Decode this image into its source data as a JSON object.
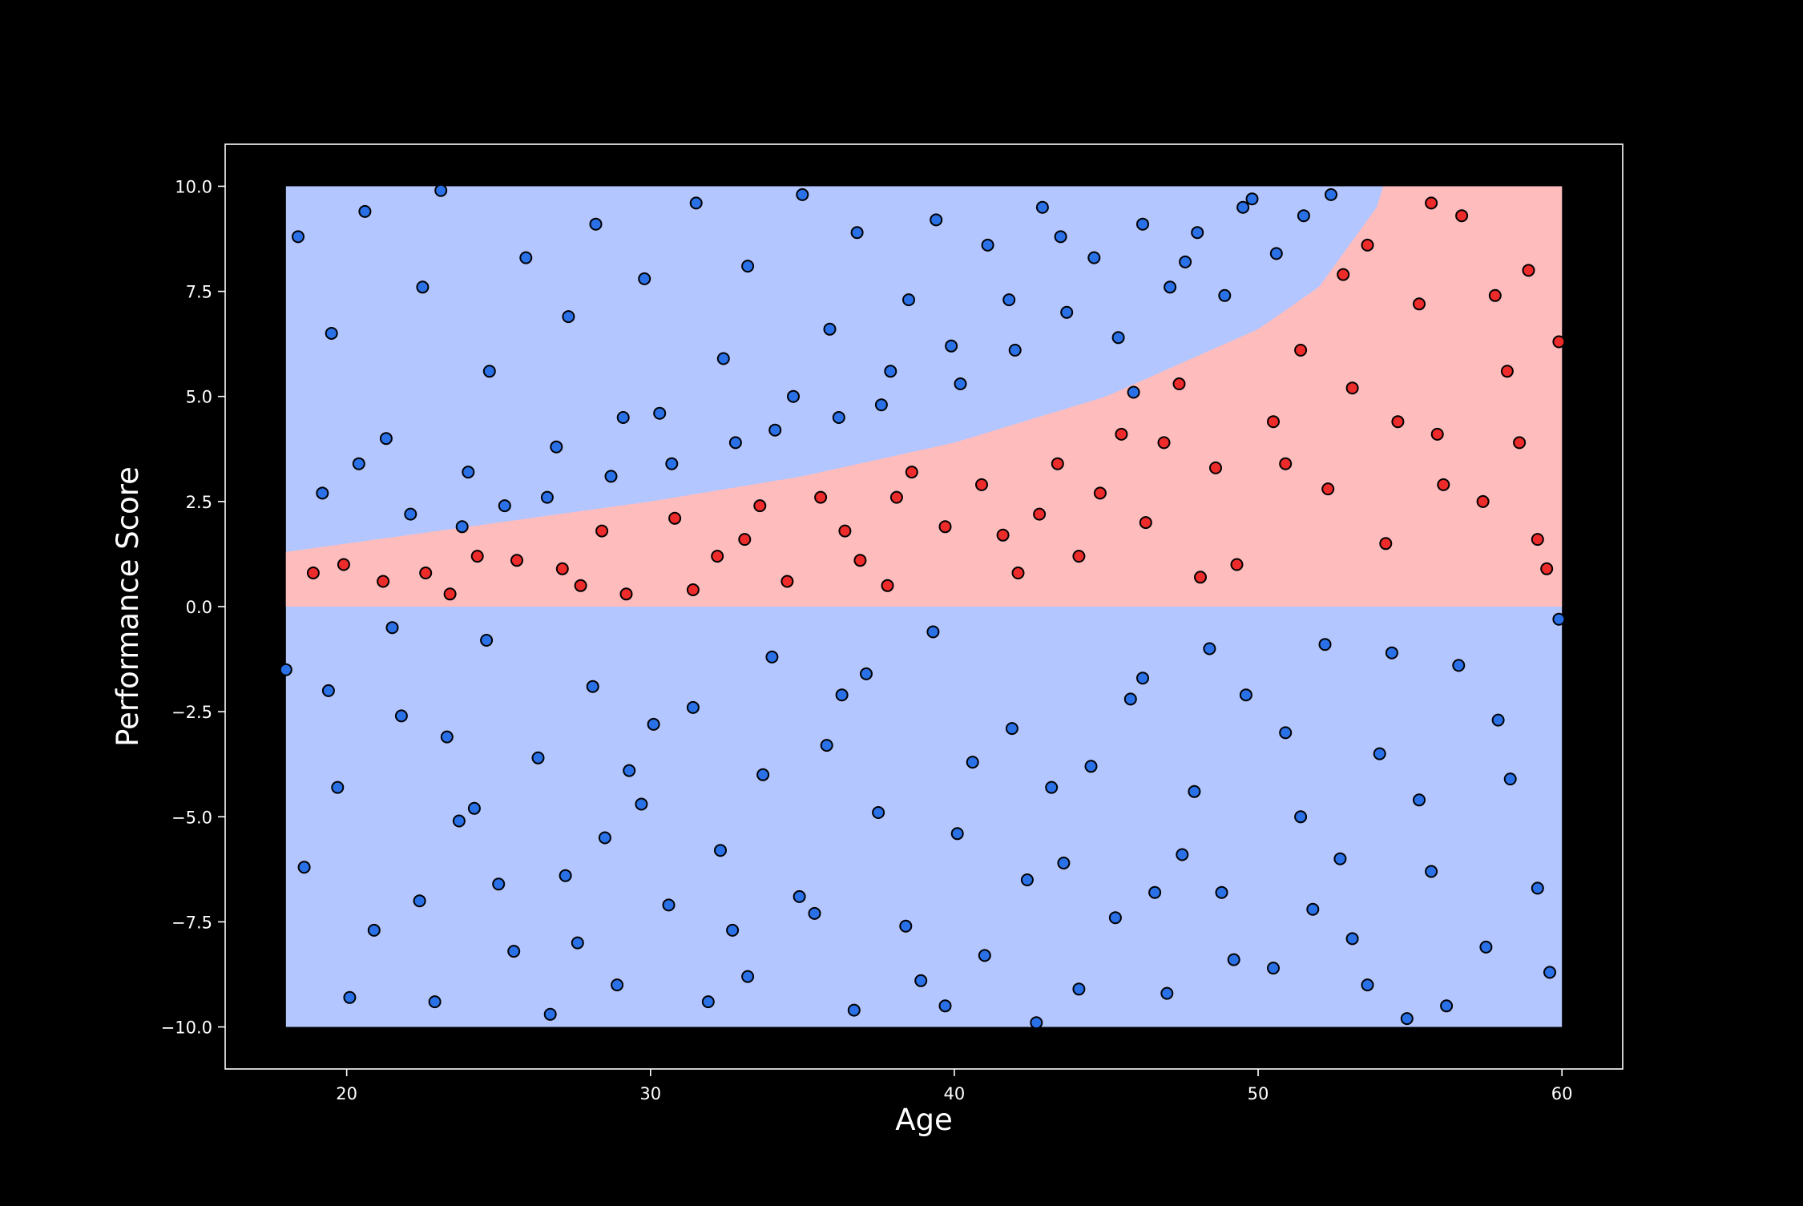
{
  "chart_data": {
    "type": "scatter",
    "title": "",
    "xlabel": "Age",
    "ylabel": "Performance Score",
    "xlim": [
      16,
      62
    ],
    "ylim": [
      -11,
      11
    ],
    "x_ticks": [
      20,
      30,
      40,
      50,
      60
    ],
    "x_tick_labels": [
      "20",
      "30",
      "40",
      "50",
      "60"
    ],
    "y_ticks": [
      10,
      7.5,
      5,
      2.5,
      0,
      -2.5,
      -5,
      -7.5,
      -10
    ],
    "y_tick_labels": [
      "10.0",
      "7.5",
      "5.0",
      "2.5",
      "0.0",
      "−2.5",
      "−5.0",
      "−7.5",
      "−10.0"
    ],
    "grid": false,
    "legend": "none",
    "decision_region": {
      "x_range": [
        18,
        60
      ],
      "y_range": [
        -10,
        10
      ],
      "positive_class_region": "0 <= y < exp(0.05 * (x - 18)) - 0.13",
      "boundary_samples": {
        "x": [
          18,
          20,
          25,
          30,
          35,
          40,
          45,
          50,
          52,
          54
        ],
        "y": [
          1.3,
          1.5,
          2.0,
          2.5,
          3.1,
          3.9,
          5.0,
          6.6,
          7.6,
          9.6
        ]
      },
      "colors": {
        "positive": "#ffbcbc",
        "negative": "#b3c6ff"
      }
    },
    "series": [
      {
        "name": "",
        "label": 1,
        "color": "#ee2b2b",
        "points": [
          [
            18.9,
            0.8
          ],
          [
            19.9,
            1.0
          ],
          [
            21.2,
            0.6
          ],
          [
            22.6,
            0.8
          ],
          [
            24.3,
            1.2
          ],
          [
            25.6,
            1.1
          ],
          [
            27.1,
            0.9
          ],
          [
            28.4,
            1.8
          ],
          [
            29.2,
            0.3
          ],
          [
            30.8,
            2.1
          ],
          [
            32.2,
            1.2
          ],
          [
            33.6,
            2.4
          ],
          [
            34.5,
            0.6
          ],
          [
            35.6,
            2.6
          ],
          [
            36.4,
            1.8
          ],
          [
            37.8,
            0.5
          ],
          [
            38.6,
            3.2
          ],
          [
            39.7,
            1.9
          ],
          [
            40.9,
            2.9
          ],
          [
            42.1,
            0.8
          ],
          [
            43.4,
            3.4
          ],
          [
            44.1,
            1.2
          ],
          [
            45.5,
            4.1
          ],
          [
            46.3,
            2.0
          ],
          [
            47.4,
            5.3
          ],
          [
            48.6,
            3.3
          ],
          [
            49.3,
            1.0
          ],
          [
            50.5,
            4.4
          ],
          [
            51.4,
            6.1
          ],
          [
            52.3,
            2.8
          ],
          [
            53.6,
            8.6
          ],
          [
            54.2,
            1.5
          ],
          [
            55.3,
            7.2
          ],
          [
            55.9,
            4.1
          ],
          [
            56.7,
            9.3
          ],
          [
            57.4,
            2.5
          ],
          [
            58.2,
            5.6
          ],
          [
            58.9,
            8.0
          ],
          [
            59.5,
            0.9
          ],
          [
            59.9,
            6.3
          ],
          [
            23.4,
            0.3
          ],
          [
            31.4,
            0.4
          ],
          [
            36.9,
            1.1
          ],
          [
            41.6,
            1.7
          ],
          [
            44.8,
            2.7
          ],
          [
            48.1,
            0.7
          ],
          [
            50.9,
            3.4
          ],
          [
            53.1,
            5.2
          ],
          [
            54.6,
            4.4
          ],
          [
            56.1,
            2.9
          ],
          [
            57.8,
            7.4
          ],
          [
            58.6,
            3.9
          ],
          [
            59.2,
            1.6
          ],
          [
            46.9,
            3.9
          ],
          [
            42.8,
            2.2
          ],
          [
            38.1,
            2.6
          ],
          [
            33.1,
            1.6
          ],
          [
            27.7,
            0.5
          ],
          [
            52.8,
            7.9
          ],
          [
            55.7,
            9.6
          ]
        ]
      },
      {
        "name": "",
        "label": 0,
        "color": "#2a70e6",
        "points": [
          [
            18.4,
            8.8
          ],
          [
            19.5,
            6.5
          ],
          [
            20.6,
            9.4
          ],
          [
            21.3,
            4.0
          ],
          [
            22.5,
            7.6
          ],
          [
            23.1,
            9.9
          ],
          [
            24.0,
            3.2
          ],
          [
            24.7,
            5.6
          ],
          [
            25.9,
            8.3
          ],
          [
            26.6,
            2.6
          ],
          [
            27.3,
            6.9
          ],
          [
            28.2,
            9.1
          ],
          [
            29.1,
            4.5
          ],
          [
            29.8,
            7.8
          ],
          [
            30.7,
            3.4
          ],
          [
            31.5,
            9.6
          ],
          [
            32.4,
            5.9
          ],
          [
            33.2,
            8.1
          ],
          [
            34.1,
            4.2
          ],
          [
            35.0,
            9.8
          ],
          [
            35.9,
            6.6
          ],
          [
            36.8,
            8.9
          ],
          [
            37.6,
            4.8
          ],
          [
            38.5,
            7.3
          ],
          [
            39.4,
            9.2
          ],
          [
            40.2,
            5.3
          ],
          [
            41.1,
            8.6
          ],
          [
            42.0,
            6.1
          ],
          [
            42.9,
            9.5
          ],
          [
            43.7,
            7.0
          ],
          [
            44.6,
            8.3
          ],
          [
            45.4,
            6.4
          ],
          [
            46.2,
            9.1
          ],
          [
            47.1,
            7.6
          ],
          [
            48.0,
            8.9
          ],
          [
            48.9,
            7.4
          ],
          [
            49.8,
            9.7
          ],
          [
            50.6,
            8.4
          ],
          [
            51.5,
            9.3
          ],
          [
            52.4,
            9.8
          ],
          [
            19.2,
            2.7
          ],
          [
            20.4,
            3.4
          ],
          [
            22.1,
            2.2
          ],
          [
            23.8,
            1.9
          ],
          [
            25.2,
            2.4
          ],
          [
            26.9,
            3.8
          ],
          [
            28.7,
            3.1
          ],
          [
            30.3,
            4.6
          ],
          [
            32.8,
            3.9
          ],
          [
            34.7,
            5.0
          ],
          [
            36.2,
            4.5
          ],
          [
            37.9,
            5.6
          ],
          [
            39.9,
            6.2
          ],
          [
            41.8,
            7.3
          ],
          [
            43.5,
            8.8
          ],
          [
            45.9,
            5.1
          ],
          [
            47.6,
            8.2
          ],
          [
            49.5,
            9.5
          ],
          [
            18.0,
            -1.5
          ],
          [
            19.7,
            -4.3
          ],
          [
            20.9,
            -7.7
          ],
          [
            21.8,
            -2.6
          ],
          [
            22.9,
            -9.4
          ],
          [
            23.7,
            -5.1
          ],
          [
            24.6,
            -0.8
          ],
          [
            25.5,
            -8.2
          ],
          [
            26.3,
            -3.6
          ],
          [
            27.2,
            -6.4
          ],
          [
            28.1,
            -1.9
          ],
          [
            28.9,
            -9.0
          ],
          [
            29.7,
            -4.7
          ],
          [
            30.6,
            -7.1
          ],
          [
            31.4,
            -2.4
          ],
          [
            32.3,
            -5.8
          ],
          [
            33.2,
            -8.8
          ],
          [
            34.0,
            -1.2
          ],
          [
            34.9,
            -6.9
          ],
          [
            35.8,
            -3.3
          ],
          [
            36.7,
            -9.6
          ],
          [
            37.5,
            -4.9
          ],
          [
            38.4,
            -7.6
          ],
          [
            39.3,
            -0.6
          ],
          [
            40.1,
            -5.4
          ],
          [
            41.0,
            -8.3
          ],
          [
            41.9,
            -2.9
          ],
          [
            42.7,
            -9.9
          ],
          [
            43.6,
            -6.1
          ],
          [
            44.5,
            -3.8
          ],
          [
            45.3,
            -7.4
          ],
          [
            46.2,
            -1.7
          ],
          [
            47.0,
            -9.2
          ],
          [
            47.9,
            -4.4
          ],
          [
            48.8,
            -6.8
          ],
          [
            49.6,
            -2.1
          ],
          [
            50.5,
            -8.6
          ],
          [
            51.4,
            -5.0
          ],
          [
            52.2,
            -0.9
          ],
          [
            53.1,
            -7.9
          ],
          [
            54.0,
            -3.5
          ],
          [
            54.9,
            -9.8
          ],
          [
            55.7,
            -6.3
          ],
          [
            56.6,
            -1.4
          ],
          [
            57.5,
            -8.1
          ],
          [
            58.3,
            -4.1
          ],
          [
            59.2,
            -6.7
          ],
          [
            59.9,
            -0.3
          ],
          [
            18.6,
            -6.2
          ],
          [
            20.1,
            -9.3
          ],
          [
            21.5,
            -0.5
          ],
          [
            23.3,
            -3.1
          ],
          [
            25.0,
            -6.6
          ],
          [
            26.7,
            -9.7
          ],
          [
            28.5,
            -5.5
          ],
          [
            30.1,
            -2.8
          ],
          [
            31.9,
            -9.4
          ],
          [
            33.7,
            -4.0
          ],
          [
            35.4,
            -7.3
          ],
          [
            37.1,
            -1.6
          ],
          [
            38.9,
            -8.9
          ],
          [
            40.6,
            -3.7
          ],
          [
            42.4,
            -6.5
          ],
          [
            44.1,
            -9.1
          ],
          [
            45.8,
            -2.2
          ],
          [
            47.5,
            -5.9
          ],
          [
            49.2,
            -8.4
          ],
          [
            50.9,
            -3.0
          ],
          [
            52.7,
            -6.0
          ],
          [
            54.4,
            -1.1
          ],
          [
            56.2,
            -9.5
          ],
          [
            57.9,
            -2.7
          ],
          [
            59.6,
            -8.7
          ],
          [
            55.3,
            -4.6
          ],
          [
            53.6,
            -9.0
          ],
          [
            51.8,
            -7.2
          ],
          [
            48.4,
            -1.0
          ],
          [
            46.6,
            -6.8
          ],
          [
            43.2,
            -4.3
          ],
          [
            39.7,
            -9.5
          ],
          [
            36.3,
            -2.1
          ],
          [
            32.7,
            -7.7
          ],
          [
            29.3,
            -3.9
          ],
          [
            27.6,
            -8.0
          ],
          [
            24.2,
            -4.8
          ],
          [
            22.4,
            -7.0
          ],
          [
            19.4,
            -2.0
          ]
        ]
      }
    ]
  }
}
